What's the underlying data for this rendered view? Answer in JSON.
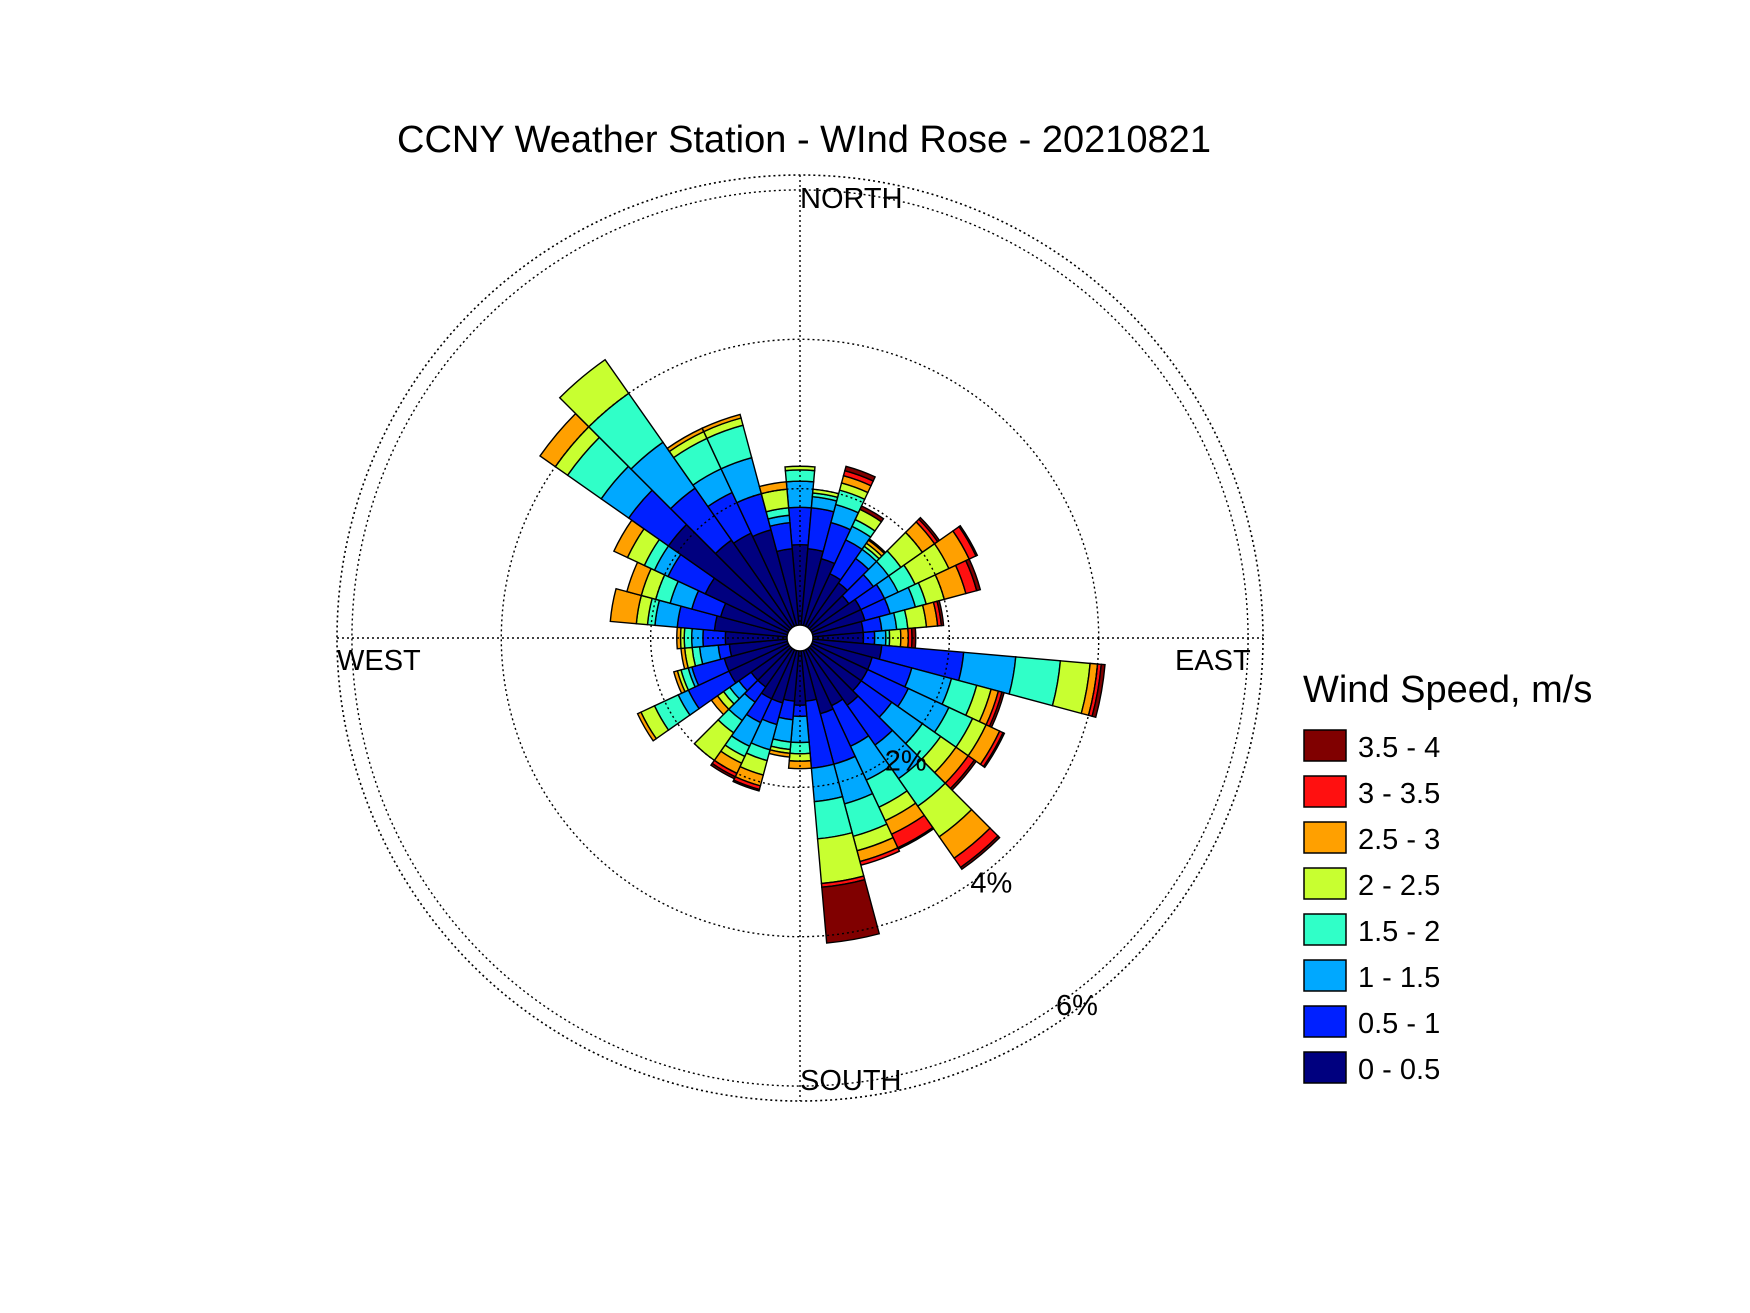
{
  "chart_data": {
    "type": "windrose",
    "title": "CCNY Weather Station - WInd Rose - 20210821",
    "direction_labels": {
      "north": "NORTH",
      "east": "EAST",
      "south": "SOUTH",
      "west": "WEST"
    },
    "radial_axis": {
      "unit": "%",
      "range": [
        0,
        6.2
      ],
      "rings": [
        2,
        4,
        6
      ],
      "ring_labels": [
        "2%",
        "4%",
        "6%"
      ]
    },
    "grid": true,
    "legend": {
      "title": "Wind Speed, m/s",
      "placement": "right",
      "bins": [
        {
          "label": "3.5 - 4",
          "color": "#800000"
        },
        {
          "label": "3 - 3.5",
          "color": "#ff1010"
        },
        {
          "label": "2.5 - 3",
          "color": "#ffa000"
        },
        {
          "label": "2 - 2.5",
          "color": "#c8ff30"
        },
        {
          "label": "1.5 - 2",
          "color": "#30ffc8"
        },
        {
          "label": "1 - 1.5",
          "color": "#00a8ff"
        },
        {
          "label": "0.5 - 1",
          "color": "#0020ff"
        },
        {
          "label": "0 - 0.5",
          "color": "#00007f"
        }
      ]
    },
    "sector_width_deg": 10,
    "speed_bins_order": [
      "0 - 0.5",
      "0.5 - 1",
      "1 - 1.5",
      "1.5 - 2",
      "2 - 2.5",
      "2.5 - 3",
      "3 - 3.5",
      "3.5 - 4"
    ],
    "sectors": [
      {
        "dir": 0,
        "cum": [
          1.25,
          1.75,
          2.1,
          2.25,
          2.3,
          2.3,
          2.3,
          2.3
        ]
      },
      {
        "dir": 10,
        "cum": [
          1.2,
          1.75,
          1.9,
          1.95,
          2.0,
          2.0,
          2.0,
          2.0
        ]
      },
      {
        "dir": 20,
        "cum": [
          1.1,
          1.6,
          1.85,
          2.05,
          2.15,
          2.25,
          2.32,
          2.38
        ]
      },
      {
        "dir": 30,
        "cum": [
          0.95,
          1.45,
          1.65,
          1.75,
          1.9,
          1.9,
          1.9,
          1.95
        ]
      },
      {
        "dir": 40,
        "cum": [
          0.9,
          1.3,
          1.45,
          1.5,
          1.55,
          1.6,
          1.6,
          1.62
        ]
      },
      {
        "dir": 50,
        "cum": [
          0.8,
          1.2,
          1.45,
          1.65,
          2.0,
          2.2,
          2.25,
          2.28
        ]
      },
      {
        "dir": 60,
        "cum": [
          0.9,
          1.25,
          1.45,
          1.7,
          2.2,
          2.5,
          2.6,
          2.62
        ]
      },
      {
        "dir": 70,
        "cum": [
          0.9,
          1.25,
          1.6,
          1.75,
          2.0,
          2.3,
          2.45,
          2.5
        ]
      },
      {
        "dir": 80,
        "cum": [
          0.85,
          1.1,
          1.3,
          1.45,
          1.7,
          1.85,
          1.9,
          1.93
        ]
      },
      {
        "dir": 90,
        "cum": [
          0.85,
          1.0,
          1.15,
          1.2,
          1.35,
          1.45,
          1.5,
          1.55
        ]
      },
      {
        "dir": 100,
        "cum": [
          1.1,
          2.2,
          2.9,
          3.5,
          3.9,
          4.0,
          4.05,
          4.1
        ]
      },
      {
        "dir": 110,
        "cum": [
          1.0,
          1.55,
          2.1,
          2.45,
          2.65,
          2.75,
          2.8,
          2.83
        ]
      },
      {
        "dir": 120,
        "cum": [
          1.0,
          1.6,
          2.2,
          2.55,
          2.75,
          2.95,
          3.0,
          3.02
        ]
      },
      {
        "dir": 130,
        "cum": [
          1.0,
          1.5,
          2.0,
          2.3,
          2.55,
          2.75,
          2.85,
          2.88
        ]
      },
      {
        "dir": 140,
        "cum": [
          1.1,
          1.75,
          2.3,
          2.75,
          3.25,
          3.6,
          3.75,
          3.78
        ]
      },
      {
        "dir": 150,
        "cum": [
          1.0,
          1.6,
          2.1,
          2.5,
          2.7,
          2.9,
          3.1,
          3.12
        ]
      },
      {
        "dir": 160,
        "cum": [
          1.05,
          1.75,
          2.3,
          2.75,
          2.95,
          3.1,
          3.15,
          3.15
        ]
      },
      {
        "dir": 170,
        "cum": [
          0.85,
          1.75,
          2.2,
          2.7,
          3.3,
          3.3,
          3.35,
          4.1
        ]
      },
      {
        "dir": 180,
        "cum": [
          0.9,
          1.05,
          1.4,
          1.55,
          1.65,
          1.75,
          1.75,
          1.75
        ]
      },
      {
        "dir": 190,
        "cum": [
          0.85,
          1.1,
          1.4,
          1.5,
          1.55,
          1.6,
          1.6,
          1.6
        ]
      },
      {
        "dir": 200,
        "cum": [
          0.9,
          1.2,
          1.55,
          1.7,
          1.9,
          2.05,
          2.1,
          2.12
        ]
      },
      {
        "dir": 210,
        "cum": [
          0.9,
          1.25,
          1.6,
          1.75,
          1.85,
          2.0,
          2.05,
          2.08
        ]
      },
      {
        "dir": 220,
        "cum": [
          0.8,
          1.05,
          1.35,
          1.55,
          2.0,
          2.0,
          2.0,
          2.0
        ]
      },
      {
        "dir": 230,
        "cum": [
          0.8,
          1.0,
          1.15,
          1.25,
          1.35,
          1.45,
          1.45,
          1.45
        ]
      },
      {
        "dir": 240,
        "cum": [
          1.05,
          1.65,
          1.8,
          2.15,
          2.35,
          2.4,
          2.4,
          2.4
        ]
      },
      {
        "dir": 250,
        "cum": [
          1.05,
          1.5,
          1.55,
          1.65,
          1.7,
          1.75,
          1.75,
          1.75
        ]
      },
      {
        "dir": 260,
        "cum": [
          0.95,
          1.1,
          1.35,
          1.45,
          1.55,
          1.6,
          1.6,
          1.6
        ]
      },
      {
        "dir": 270,
        "cum": [
          1.0,
          1.3,
          1.45,
          1.55,
          1.6,
          1.65,
          1.65,
          1.65
        ]
      },
      {
        "dir": 280,
        "cum": [
          1.15,
          1.65,
          1.95,
          2.05,
          2.2,
          2.55,
          2.55,
          2.55
        ]
      },
      {
        "dir": 290,
        "cum": [
          1.1,
          1.5,
          1.8,
          2.0,
          2.2,
          2.4,
          2.4,
          2.4
        ]
      },
      {
        "dir": 300,
        "cum": [
          1.4,
          1.95,
          2.15,
          2.3,
          2.55,
          2.75,
          2.75,
          2.75
        ]
      },
      {
        "dir": 310,
        "cum": [
          2.15,
          2.8,
          3.25,
          3.8,
          4.0,
          4.25,
          4.25,
          4.25
        ]
      },
      {
        "dir": 320,
        "cum": [
          1.6,
          2.45,
          3.2,
          4.0,
          4.55,
          4.55,
          4.55,
          4.55
        ]
      },
      {
        "dir": 330,
        "cum": [
          1.55,
          2.15,
          2.5,
          2.95,
          3.05,
          3.1,
          3.1,
          3.1
        ]
      },
      {
        "dir": 340,
        "cum": [
          1.5,
          2.0,
          2.5,
          2.95,
          3.05,
          3.1,
          3.1,
          3.1
        ]
      },
      {
        "dir": 350,
        "cum": [
          1.2,
          1.55,
          1.65,
          1.75,
          2.0,
          2.1,
          2.1,
          2.1
        ]
      }
    ]
  }
}
